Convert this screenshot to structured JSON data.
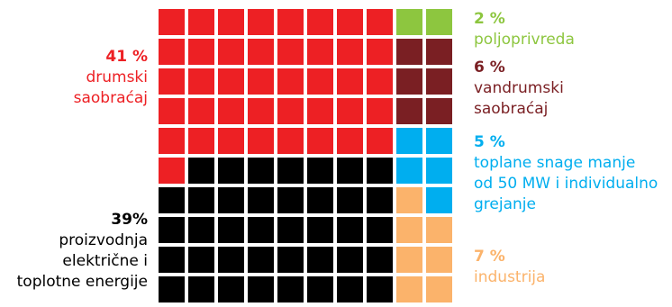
{
  "chart_data": {
    "type": "waffle",
    "rows": 10,
    "cols": 10,
    "segments": [
      {
        "id": "road",
        "percent": "41 %",
        "value": 41,
        "label": "drumski\nsaobraćaj",
        "color": "#ed2024",
        "side": "left"
      },
      {
        "id": "power",
        "percent": "39%",
        "value": 39,
        "label": "proizvodnja\nelektrične i\ntoplotne energije",
        "color": "#000000",
        "side": "left"
      },
      {
        "id": "agri",
        "percent": "2 %",
        "value": 2,
        "label": "poljoprivreda",
        "color": "#8dc63f",
        "side": "right"
      },
      {
        "id": "offroad",
        "percent": "6 %",
        "value": 6,
        "label": "vandrumski\nsaobraćaj",
        "color": "#7a1f23",
        "side": "right"
      },
      {
        "id": "heating",
        "percent": "5 %",
        "value": 5,
        "label": "toplane snage manje\nod 50 MW i individualno\ngrejanje",
        "color": "#00aeef",
        "side": "right"
      },
      {
        "id": "industry",
        "percent": "7 %",
        "value": 7,
        "label": "industrija",
        "color": "#fbb36b",
        "side": "right"
      }
    ],
    "cell_colors": [
      [
        "road",
        "road",
        "road",
        "road",
        "road",
        "road",
        "road",
        "road",
        "agri",
        "agri"
      ],
      [
        "road",
        "road",
        "road",
        "road",
        "road",
        "road",
        "road",
        "road",
        "offroad",
        "offroad"
      ],
      [
        "road",
        "road",
        "road",
        "road",
        "road",
        "road",
        "road",
        "road",
        "offroad",
        "offroad"
      ],
      [
        "road",
        "road",
        "road",
        "road",
        "road",
        "road",
        "road",
        "road",
        "offroad",
        "offroad"
      ],
      [
        "road",
        "road",
        "road",
        "road",
        "road",
        "road",
        "road",
        "road",
        "heating",
        "heating"
      ],
      [
        "road",
        "power",
        "power",
        "power",
        "power",
        "power",
        "power",
        "power",
        "heating",
        "heating"
      ],
      [
        "power",
        "power",
        "power",
        "power",
        "power",
        "power",
        "power",
        "power",
        "industry",
        "heating"
      ],
      [
        "power",
        "power",
        "power",
        "power",
        "power",
        "power",
        "power",
        "power",
        "industry",
        "industry"
      ],
      [
        "power",
        "power",
        "power",
        "power",
        "power",
        "power",
        "power",
        "power",
        "industry",
        "industry"
      ],
      [
        "power",
        "power",
        "power",
        "power",
        "power",
        "power",
        "power",
        "power",
        "industry",
        "industry"
      ]
    ]
  }
}
